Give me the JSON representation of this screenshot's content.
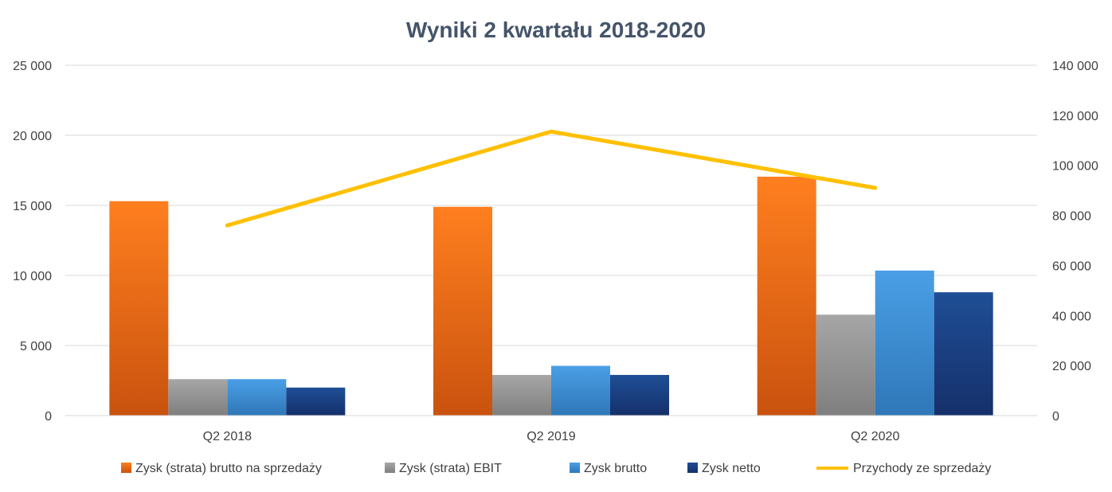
{
  "chart_data": {
    "type": "bar",
    "title": "Wyniki 2 kwartału 2018-2020",
    "categories": [
      "Q2 2018",
      "Q2 2019",
      "Q2 2020"
    ],
    "series": [
      {
        "name": "Zysk (strata) brutto na sprzedaży",
        "type": "bar",
        "axis": "left",
        "values": [
          15300,
          14900,
          17050
        ]
      },
      {
        "name": "Zysk (strata) EBIT",
        "type": "bar",
        "axis": "left",
        "values": [
          2600,
          2900,
          7200
        ]
      },
      {
        "name": "Zysk brutto",
        "type": "bar",
        "axis": "left",
        "values": [
          2600,
          3550,
          10350
        ]
      },
      {
        "name": "Zysk netto",
        "type": "bar",
        "axis": "left",
        "values": [
          2000,
          2900,
          8800
        ]
      },
      {
        "name": "Przychody ze sprzedaży",
        "type": "line",
        "axis": "right",
        "values": [
          76000,
          113500,
          91000
        ]
      }
    ],
    "ylim": [
      0,
      25000
    ],
    "y2lim": [
      0,
      140000
    ],
    "yticks": [
      "0",
      "5 000",
      "10 000",
      "15 000",
      "20 000",
      "25 000"
    ],
    "y2ticks": [
      "0",
      "20 000",
      "40 000",
      "60 000",
      "80 000",
      "100 000",
      "120 000",
      "140 000"
    ],
    "grid": true,
    "legend_position": "bottom",
    "colors": {
      "bar1_top": "#ff7f1f",
      "bar1_bottom": "#c9520e",
      "bar2_top": "#a6a6a6",
      "bar2_bottom": "#7f7f7f",
      "bar3_top": "#4a9fe6",
      "bar3_bottom": "#2f77b8",
      "bar4_top": "#1f4e96",
      "bar4_bottom": "#15306a",
      "line": "#ffc000",
      "grid": "#d9d9d9",
      "title": "#44546a"
    }
  }
}
